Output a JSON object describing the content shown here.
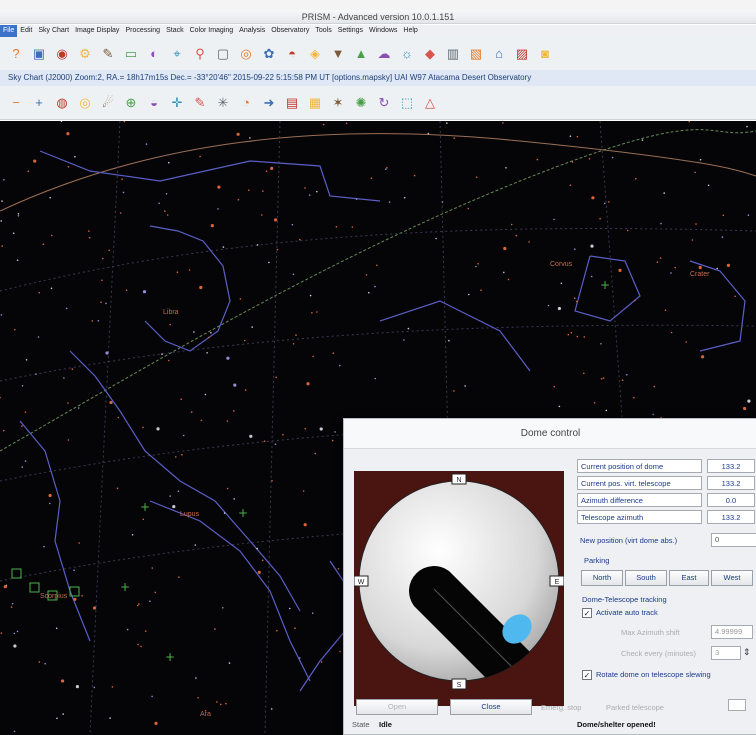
{
  "window": {
    "title": "PRISM - Advanced version 10.0.1.151"
  },
  "menu": [
    "File",
    "Edit",
    "Sky Chart",
    "Image Display",
    "Processing",
    "Stack",
    "Color Imaging",
    "Analysis",
    "Observatory",
    "Tools",
    "Settings",
    "Windows",
    "Help"
  ],
  "status_line": "Sky Chart (J2000) Zoom:2, RA.= 18h17m15s Dec.= -33°20'46\"   2015-09-22 5:15:58 PM UT [options.mapsky]  UAI W97 Atacama Desert Observatory",
  "toolbar1_icons": [
    "help-icon",
    "save-icon",
    "camera-icon",
    "gear-icon",
    "wrench-icon",
    "ruler-icon",
    "half-moon-icon",
    "telescope-icon",
    "magnifier-icon",
    "monitor-icon",
    "camera-lens-icon",
    "filter-wheel-icon",
    "dome-icon",
    "focuser-icon",
    "shirt-icon",
    "fire-icon",
    "cloud-icon",
    "weather-icon",
    "weather-station-icon",
    "spectrum-icon",
    "graph-icon",
    "roof-icon",
    "chart-icon",
    "camera-icon-2"
  ],
  "toolbar2_icons": [
    "zoom-out-icon",
    "zoom-in-icon",
    "earth-icon",
    "planets-icon",
    "comet-icon",
    "target-icon",
    "horizon-icon",
    "crosshair-icon",
    "wrench-icon",
    "star-burst-icon",
    "finder-icon",
    "arrow-right-icon",
    "frame-icon",
    "grid-icon",
    "star-icon",
    "nebula-icon",
    "refresh-icon",
    "selection-icon",
    "triangle-icon"
  ],
  "sky": {
    "labels": [
      "Libra",
      "Lupus",
      "Scorpius",
      "Corvus",
      "Crater",
      "Ara"
    ]
  },
  "dome": {
    "title": "Dome control",
    "compass": {
      "n": "N",
      "s": "S",
      "e": "E",
      "w": "W"
    },
    "rows": [
      {
        "label": "Current position of dome",
        "value": "133.2"
      },
      {
        "label": "Current pos. virt. telescope",
        "value": "133.2"
      },
      {
        "label": "Azimuth difference",
        "value": "0.0"
      },
      {
        "label": "Telescope azimuth",
        "value": "133.2"
      }
    ],
    "new_position_label": "New position (virt dome abs.)",
    "new_position_value": "0",
    "parking_label": "Parking",
    "parking_buttons": [
      "North",
      "South",
      "East",
      "West"
    ],
    "tracking_label": "Dome-Telescope tracking",
    "activate_auto_track": "Activate auto track",
    "max_azimuth_label": "Max Azimuth shift",
    "max_azimuth_value": "4.99999",
    "check_every_label": "Check every (minutes)",
    "check_every_value": "3",
    "rotate_label": "Rotate dome on telescope slewing",
    "open_label": "Open",
    "close_label": "Close",
    "emergency_label": "Emerg. stop",
    "parked_label": "Parked telescope",
    "state_label": "State",
    "state_value": "Idle",
    "shelter_status": "Dome/shelter opened!"
  },
  "colors": {
    "accent": "#3b73c8",
    "sky": "#050507",
    "dome_interior": "#4a1410",
    "scope_lens": "#4fb8ee"
  }
}
